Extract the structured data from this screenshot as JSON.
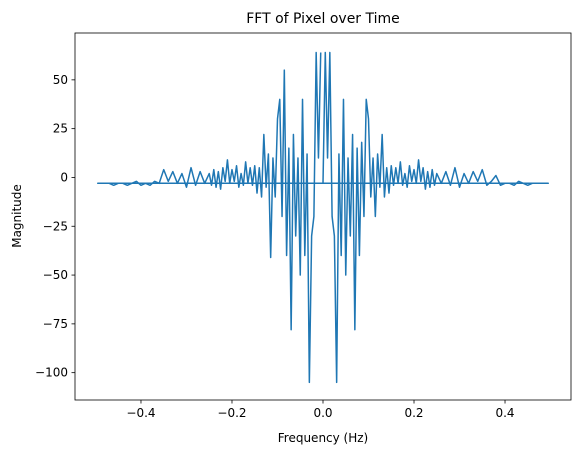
{
  "chart_data": {
    "type": "line",
    "title": "FFT of Pixel over Time",
    "xlabel": "Frequency (Hz)",
    "ylabel": "Magnitude",
    "xlim": [
      -0.545,
      0.545
    ],
    "ylim": [
      -114,
      74
    ],
    "xticks": [
      -0.4,
      -0.2,
      0.0,
      0.2,
      0.4
    ],
    "xtick_labels": [
      "−0.4",
      "−0.2",
      "0.0",
      "0.2",
      "0.4"
    ],
    "yticks": [
      -100,
      -75,
      -50,
      -25,
      0,
      25,
      50
    ],
    "ytick_labels": [
      "−100",
      "−75",
      "−50",
      "−25",
      "0",
      "25",
      "50"
    ],
    "grid": false,
    "series": [
      {
        "color": "#1f77b4",
        "x": [
          0.0,
          0.005,
          0.01,
          0.015,
          0.02,
          0.025,
          0.03,
          0.035,
          0.04,
          0.045,
          0.05,
          0.055,
          0.06,
          0.065,
          0.07,
          0.075,
          0.08,
          0.085,
          0.09,
          0.095,
          0.1,
          0.105,
          0.11,
          0.115,
          0.12,
          0.125,
          0.13,
          0.135,
          0.14,
          0.145,
          0.15,
          0.155,
          0.16,
          0.165,
          0.17,
          0.175,
          0.18,
          0.185,
          0.19,
          0.195,
          0.2,
          0.205,
          0.21,
          0.215,
          0.22,
          0.225,
          0.23,
          0.235,
          0.24,
          0.245,
          0.25,
          0.26,
          0.27,
          0.28,
          0.29,
          0.3,
          0.31,
          0.32,
          0.33,
          0.34,
          0.35,
          0.36,
          0.37,
          0.38,
          0.39,
          0.4,
          0.41,
          0.42,
          0.43,
          0.44,
          0.45,
          0.46,
          0.47,
          0.48,
          0.49,
          0.495,
          -0.495,
          -0.49,
          -0.48,
          -0.47,
          -0.46,
          -0.45,
          -0.44,
          -0.43,
          -0.42,
          -0.41,
          -0.4,
          -0.39,
          -0.38,
          -0.37,
          -0.36,
          -0.35,
          -0.34,
          -0.33,
          -0.32,
          -0.31,
          -0.3,
          -0.29,
          -0.28,
          -0.27,
          -0.26,
          -0.25,
          -0.245,
          -0.24,
          -0.235,
          -0.23,
          -0.225,
          -0.22,
          -0.215,
          -0.21,
          -0.205,
          -0.2,
          -0.195,
          -0.19,
          -0.185,
          -0.18,
          -0.175,
          -0.17,
          -0.165,
          -0.16,
          -0.155,
          -0.15,
          -0.145,
          -0.14,
          -0.135,
          -0.13,
          -0.125,
          -0.12,
          -0.115,
          -0.11,
          -0.105,
          -0.1,
          -0.095,
          -0.09,
          -0.085,
          -0.08,
          -0.075,
          -0.07,
          -0.065,
          -0.06,
          -0.055,
          -0.05,
          -0.045,
          -0.04,
          -0.035,
          -0.03,
          -0.025,
          -0.02,
          -0.015,
          -0.01,
          -0.005
        ],
        "y": [
          -3,
          64,
          10,
          64,
          -20,
          -30,
          -105,
          12,
          -40,
          40,
          -50,
          10,
          -30,
          22,
          -78,
          15,
          -40,
          18,
          -20,
          40,
          30,
          -10,
          10,
          -20,
          12,
          -5,
          22,
          -10,
          5,
          -8,
          6,
          -4,
          5,
          -3,
          8,
          -4,
          2,
          -5,
          6,
          -2,
          4,
          -3,
          9,
          -2,
          5,
          -6,
          3,
          -5,
          4,
          -4,
          2,
          -3,
          3,
          -4,
          5,
          -5,
          2,
          -3,
          3,
          -2,
          4,
          -4,
          -2,
          1,
          -4,
          -3,
          -3,
          -4,
          -2,
          -3,
          -4,
          -3,
          -3,
          -3,
          -3,
          -3,
          -3,
          -3,
          -3,
          -3,
          -4,
          -3,
          -3,
          -4,
          -3,
          -2,
          -4,
          -3,
          -4,
          -2,
          -3,
          4,
          -2,
          3,
          -3,
          2,
          -5,
          5,
          -4,
          3,
          -3,
          2,
          -4,
          4,
          -5,
          3,
          -6,
          5,
          -2,
          9,
          -3,
          4,
          -2,
          6,
          -5,
          2,
          -4,
          8,
          -3,
          5,
          -4,
          6,
          -8,
          5,
          -10,
          22,
          -5,
          12,
          -41,
          10,
          -10,
          30,
          40,
          -20,
          55,
          -40,
          15,
          -78,
          22,
          -30,
          10,
          -50,
          40,
          -40,
          12,
          -105,
          -30,
          -20,
          64,
          10,
          64
        ]
      }
    ]
  }
}
